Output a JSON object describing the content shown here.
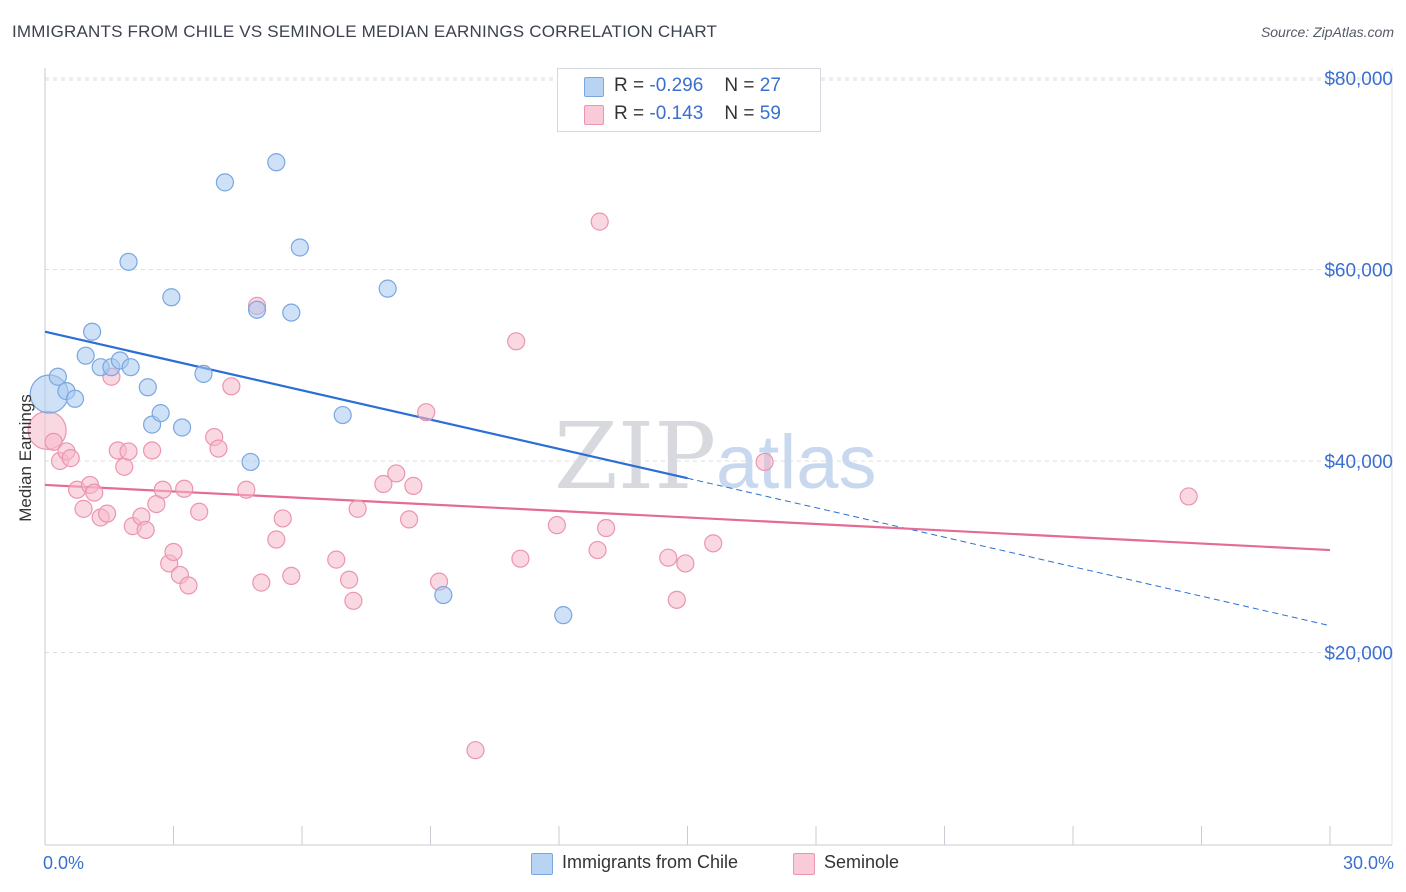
{
  "header": {
    "title": "IMMIGRANTS FROM CHILE VS SEMINOLE MEDIAN EARNINGS CORRELATION CHART",
    "source": "Source: ZipAtlas.com"
  },
  "legend_top": {
    "rows": [
      {
        "r_label": "R =",
        "r_value": "-0.296",
        "n_label": "N =",
        "n_value": "27"
      },
      {
        "r_label": "R =",
        "r_value": "-0.143",
        "n_label": "N =",
        "n_value": "59"
      }
    ]
  },
  "watermark": {
    "zip": "ZIP",
    "atlas": "atlas"
  },
  "colors": {
    "blue_fill": "#a8c8f0",
    "blue_stroke": "#7aa7e0",
    "blue_line": "#2b6fd6",
    "pink_fill": "#f6b8ca",
    "pink_stroke": "#ec94b0",
    "pink_line": "#e36b94",
    "axis_text": "#3a6fd0",
    "grid": "#dadde3"
  },
  "chart_data": {
    "type": "scatter",
    "title": "IMMIGRANTS FROM CHILE VS SEMINOLE MEDIAN EARNINGS CORRELATION CHART",
    "xlabel": "",
    "ylabel": "Median Earnings",
    "xlim": [
      0,
      30
    ],
    "ylim": [
      0,
      82000
    ],
    "x_tick_labels": [
      "0.0%",
      "30.0%"
    ],
    "y_ticks": [
      20000,
      40000,
      60000,
      80000
    ],
    "y_tick_labels": [
      "$20,000",
      "$40,000",
      "$60,000",
      "$80,000"
    ],
    "grid": true,
    "legend_position": "bottom",
    "series": [
      {
        "name": "Immigrants from Chile",
        "color": "#a8c8f0",
        "r": -0.296,
        "n": 27,
        "trend": {
          "x": [
            0,
            15
          ],
          "y": [
            53500,
            38200
          ]
        },
        "trend_extension": {
          "x": [
            15,
            30
          ],
          "y": [
            38200,
            22800
          ]
        },
        "points": [
          {
            "x": 0.1,
            "y": 47000,
            "big": true
          },
          {
            "x": 0.3,
            "y": 48800
          },
          {
            "x": 0.5,
            "y": 47300
          },
          {
            "x": 0.7,
            "y": 46500
          },
          {
            "x": 0.95,
            "y": 51000
          },
          {
            "x": 1.1,
            "y": 53500
          },
          {
            "x": 1.3,
            "y": 49800
          },
          {
            "x": 1.55,
            "y": 49800
          },
          {
            "x": 1.75,
            "y": 50500
          },
          {
            "x": 2.0,
            "y": 49800
          },
          {
            "x": 1.95,
            "y": 60800
          },
          {
            "x": 2.4,
            "y": 47700
          },
          {
            "x": 2.5,
            "y": 43800
          },
          {
            "x": 2.7,
            "y": 45000
          },
          {
            "x": 2.95,
            "y": 57100
          },
          {
            "x": 3.2,
            "y": 43500
          },
          {
            "x": 3.7,
            "y": 49100
          },
          {
            "x": 4.2,
            "y": 69100
          },
          {
            "x": 4.8,
            "y": 39900
          },
          {
            "x": 4.95,
            "y": 55800
          },
          {
            "x": 5.4,
            "y": 71200
          },
          {
            "x": 5.75,
            "y": 55500
          },
          {
            "x": 5.95,
            "y": 62300
          },
          {
            "x": 6.95,
            "y": 44800
          },
          {
            "x": 8.0,
            "y": 58000
          },
          {
            "x": 9.3,
            "y": 26000
          },
          {
            "x": 12.1,
            "y": 23900
          }
        ]
      },
      {
        "name": "Seminole",
        "color": "#f6b8ca",
        "r": -0.143,
        "n": 59,
        "trend": {
          "x": [
            0,
            30
          ],
          "y": [
            37500,
            30700
          ]
        },
        "points": [
          {
            "x": 0.05,
            "y": 43200,
            "big": true
          },
          {
            "x": 0.2,
            "y": 42000
          },
          {
            "x": 0.35,
            "y": 40000
          },
          {
            "x": 0.5,
            "y": 41000
          },
          {
            "x": 0.6,
            "y": 40300
          },
          {
            "x": 0.75,
            "y": 37000
          },
          {
            "x": 0.9,
            "y": 35000
          },
          {
            "x": 1.05,
            "y": 37500
          },
          {
            "x": 1.15,
            "y": 36700
          },
          {
            "x": 1.3,
            "y": 34100
          },
          {
            "x": 1.45,
            "y": 34500
          },
          {
            "x": 1.55,
            "y": 48800
          },
          {
            "x": 1.7,
            "y": 41100
          },
          {
            "x": 1.85,
            "y": 39400
          },
          {
            "x": 1.95,
            "y": 41000
          },
          {
            "x": 2.05,
            "y": 33200
          },
          {
            "x": 2.25,
            "y": 34200
          },
          {
            "x": 2.35,
            "y": 32800
          },
          {
            "x": 2.5,
            "y": 41100
          },
          {
            "x": 2.6,
            "y": 35500
          },
          {
            "x": 2.75,
            "y": 37000
          },
          {
            "x": 2.9,
            "y": 29300
          },
          {
            "x": 3.0,
            "y": 30500
          },
          {
            "x": 3.15,
            "y": 28100
          },
          {
            "x": 3.25,
            "y": 37100
          },
          {
            "x": 3.35,
            "y": 27000
          },
          {
            "x": 3.6,
            "y": 34700
          },
          {
            "x": 3.95,
            "y": 42500
          },
          {
            "x": 4.05,
            "y": 41300
          },
          {
            "x": 4.35,
            "y": 47800
          },
          {
            "x": 4.7,
            "y": 37000
          },
          {
            "x": 4.95,
            "y": 56200
          },
          {
            "x": 5.05,
            "y": 27300
          },
          {
            "x": 5.4,
            "y": 31800
          },
          {
            "x": 5.55,
            "y": 34000
          },
          {
            "x": 5.75,
            "y": 28000
          },
          {
            "x": 6.8,
            "y": 29700
          },
          {
            "x": 7.1,
            "y": 27600
          },
          {
            "x": 7.2,
            "y": 25400
          },
          {
            "x": 7.3,
            "y": 35000
          },
          {
            "x": 7.9,
            "y": 37600
          },
          {
            "x": 8.2,
            "y": 38700
          },
          {
            "x": 8.5,
            "y": 33900
          },
          {
            "x": 8.6,
            "y": 37400
          },
          {
            "x": 8.9,
            "y": 45100
          },
          {
            "x": 9.2,
            "y": 27400
          },
          {
            "x": 10.05,
            "y": 9800
          },
          {
            "x": 11.0,
            "y": 52500
          },
          {
            "x": 11.1,
            "y": 29800
          },
          {
            "x": 11.95,
            "y": 33300
          },
          {
            "x": 12.9,
            "y": 30700
          },
          {
            "x": 12.95,
            "y": 65000
          },
          {
            "x": 13.1,
            "y": 33000
          },
          {
            "x": 14.55,
            "y": 29900
          },
          {
            "x": 14.75,
            "y": 25500
          },
          {
            "x": 14.95,
            "y": 29300
          },
          {
            "x": 15.6,
            "y": 31400
          },
          {
            "x": 16.8,
            "y": 39900
          },
          {
            "x": 26.7,
            "y": 36300
          }
        ]
      }
    ]
  },
  "legend_bottom": {
    "items": [
      {
        "label": "Immigrants from Chile"
      },
      {
        "label": "Seminole"
      }
    ]
  }
}
